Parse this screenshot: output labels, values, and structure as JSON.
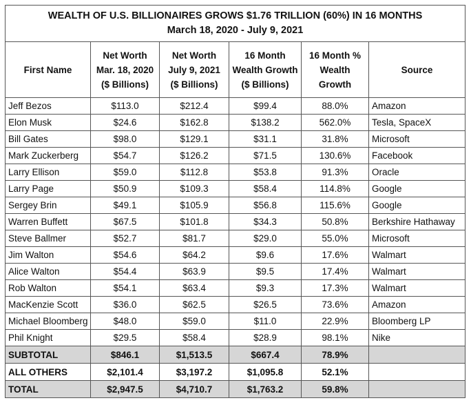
{
  "title": {
    "line1": "WEALTH OF U.S. BILLIONAIRES GROWS $1.76 TRILLION (60%) IN 16 MONTHS",
    "line2": "March 18, 2020 - July 9, 2021"
  },
  "headers": [
    [
      "First Name"
    ],
    [
      "Net Worth",
      "Mar. 18, 2020",
      "($ Billions)"
    ],
    [
      "Net Worth",
      "July 9, 2021",
      "($ Billions)"
    ],
    [
      "16 Month",
      "Wealth Growth",
      "($ Billions)"
    ],
    [
      "16 Month %",
      "Wealth",
      "Growth"
    ],
    [
      "Source"
    ]
  ],
  "rows": [
    [
      "Jeff Bezos",
      "$113.0",
      "$212.4",
      "$99.4",
      "88.0%",
      "Amazon"
    ],
    [
      "Elon Musk",
      "$24.6",
      "$162.8",
      "$138.2",
      "562.0%",
      "Tesla, SpaceX"
    ],
    [
      "Bill Gates",
      "$98.0",
      "$129.1",
      "$31.1",
      "31.8%",
      "Microsoft"
    ],
    [
      "Mark Zuckerberg",
      "$54.7",
      "$126.2",
      "$71.5",
      "130.6%",
      "Facebook"
    ],
    [
      "Larry Ellison",
      "$59.0",
      "$112.8",
      "$53.8",
      "91.3%",
      "Oracle"
    ],
    [
      "Larry Page",
      "$50.9",
      "$109.3",
      "$58.4",
      "114.8%",
      "Google"
    ],
    [
      "Sergey Brin",
      "$49.1",
      "$105.9",
      "$56.8",
      "115.6%",
      "Google"
    ],
    [
      "Warren Buffett",
      "$67.5",
      "$101.8",
      "$34.3",
      "50.8%",
      "Berkshire Hathaway"
    ],
    [
      "Steve Ballmer",
      "$52.7",
      "$81.7",
      "$29.0",
      "55.0%",
      "Microsoft"
    ],
    [
      "Jim Walton",
      "$54.6",
      "$64.2",
      "$9.6",
      "17.6%",
      "Walmart"
    ],
    [
      "Alice Walton",
      "$54.4",
      "$63.9",
      "$9.5",
      "17.4%",
      "Walmart"
    ],
    [
      "Rob Walton",
      "$54.1",
      "$63.4",
      "$9.3",
      "17.3%",
      "Walmart"
    ],
    [
      "MacKenzie Scott",
      "$36.0",
      "$62.5",
      "$26.5",
      "73.6%",
      "Amazon"
    ],
    [
      "Michael Bloomberg",
      "$48.0",
      "$59.0",
      "$11.0",
      "22.9%",
      "Bloomberg LP"
    ],
    [
      "Phil Knight",
      "$29.5",
      "$58.4",
      "$28.9",
      "98.1%",
      "Nike"
    ]
  ],
  "summary": [
    {
      "kind": "sub",
      "cells": [
        "SUBTOTAL",
        "$846.1",
        "$1,513.5",
        "$667.4",
        "78.9%",
        ""
      ]
    },
    {
      "kind": "oth",
      "cells": [
        "ALL OTHERS",
        "$2,101.4",
        "$3,197.2",
        "$1,095.8",
        "52.1%",
        ""
      ]
    },
    {
      "kind": "tot",
      "cells": [
        "TOTAL",
        "$2,947.5",
        "$4,710.7",
        "$1,763.2",
        "59.8%",
        ""
      ]
    }
  ]
}
